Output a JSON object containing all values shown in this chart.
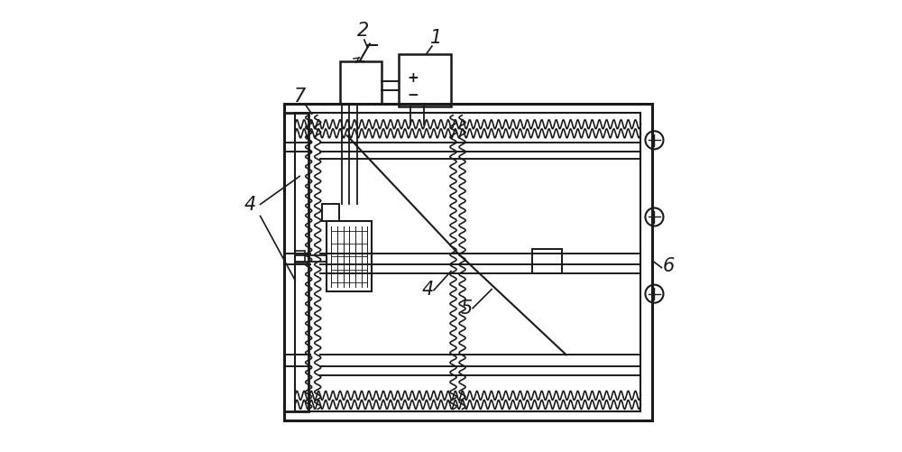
{
  "bg_color": "#ffffff",
  "line_color": "#1a1a1a",
  "fig_width": 10.0,
  "fig_height": 5.01,
  "dpi": 100
}
